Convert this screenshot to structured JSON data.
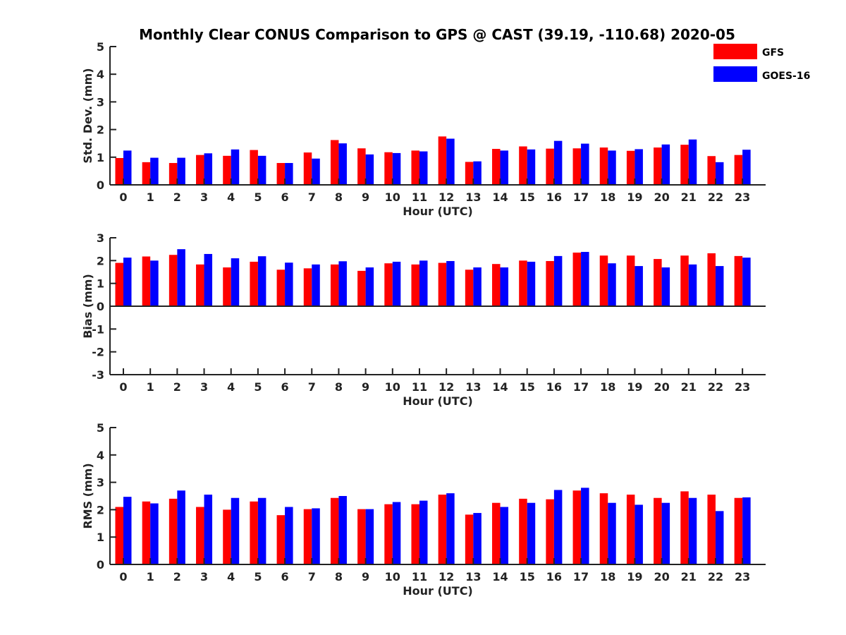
{
  "title": "Monthly Clear CONUS Comparison to GPS @ CAST (39.19, -110.68) 2020-05",
  "colors": {
    "GFS": "#ff0000",
    "GOES-16": "#0000ff",
    "axis": "#222222"
  },
  "legend": [
    {
      "name": "GFS",
      "color": "#ff0000"
    },
    {
      "name": "GOES-16",
      "color": "#0000ff"
    }
  ],
  "chart_data": [
    {
      "type": "bar",
      "ylabel": "Std. Dev. (mm)",
      "xlabel": "Hour (UTC)",
      "ylim": [
        0,
        5
      ],
      "yticks": [
        0,
        1,
        2,
        3,
        4,
        5
      ],
      "categories": [
        "0",
        "1",
        "2",
        "3",
        "4",
        "5",
        "6",
        "7",
        "8",
        "9",
        "10",
        "11",
        "12",
        "13",
        "14",
        "15",
        "16",
        "17",
        "18",
        "19",
        "20",
        "21",
        "22",
        "23"
      ],
      "series": [
        {
          "name": "GFS",
          "values": [
            0.97,
            0.82,
            0.79,
            1.08,
            1.05,
            1.26,
            0.79,
            1.17,
            1.62,
            1.32,
            1.18,
            1.24,
            1.75,
            0.83,
            1.3,
            1.39,
            1.31,
            1.32,
            1.35,
            1.23,
            1.35,
            1.45,
            1.04,
            1.08
          ]
        },
        {
          "name": "GOES-16",
          "values": [
            1.24,
            0.98,
            0.98,
            1.14,
            1.28,
            1.05,
            0.79,
            0.95,
            1.5,
            1.1,
            1.15,
            1.21,
            1.67,
            0.85,
            1.24,
            1.28,
            1.59,
            1.49,
            1.24,
            1.29,
            1.46,
            1.64,
            0.82,
            1.27
          ]
        }
      ]
    },
    {
      "type": "bar",
      "ylabel": "Bias (mm)",
      "xlabel": "Hour (UTC)",
      "ylim": [
        -3,
        3
      ],
      "yticks": [
        -3,
        -2,
        -1,
        0,
        1,
        2,
        3
      ],
      "categories": [
        "0",
        "1",
        "2",
        "3",
        "4",
        "5",
        "6",
        "7",
        "8",
        "9",
        "10",
        "11",
        "12",
        "13",
        "14",
        "15",
        "16",
        "17",
        "18",
        "19",
        "20",
        "21",
        "22",
        "23"
      ],
      "series": [
        {
          "name": "GFS",
          "values": [
            1.9,
            2.18,
            2.25,
            1.83,
            1.7,
            1.95,
            1.6,
            1.66,
            1.83,
            1.55,
            1.88,
            1.83,
            1.9,
            1.6,
            1.85,
            2.0,
            1.98,
            2.35,
            2.22,
            2.22,
            2.07,
            2.22,
            2.32,
            2.2
          ]
        },
        {
          "name": "GOES-16",
          "values": [
            2.13,
            2.0,
            2.5,
            2.29,
            2.1,
            2.19,
            1.91,
            1.83,
            1.97,
            1.7,
            1.95,
            2.0,
            1.98,
            1.7,
            1.7,
            1.95,
            2.2,
            2.38,
            1.88,
            1.76,
            1.7,
            1.83,
            1.76,
            2.13
          ]
        }
      ]
    },
    {
      "type": "bar",
      "ylabel": "RMS (mm)",
      "xlabel": "Hour (UTC)",
      "ylim": [
        0,
        5
      ],
      "yticks": [
        0,
        1,
        2,
        3,
        4,
        5
      ],
      "categories": [
        "0",
        "1",
        "2",
        "3",
        "4",
        "5",
        "6",
        "7",
        "8",
        "9",
        "10",
        "11",
        "12",
        "13",
        "14",
        "15",
        "16",
        "17",
        "18",
        "19",
        "20",
        "21",
        "22",
        "23"
      ],
      "series": [
        {
          "name": "GFS",
          "values": [
            2.1,
            2.3,
            2.4,
            2.1,
            2.0,
            2.3,
            1.8,
            2.02,
            2.43,
            2.02,
            2.2,
            2.2,
            2.55,
            1.82,
            2.25,
            2.4,
            2.38,
            2.7,
            2.6,
            2.55,
            2.43,
            2.67,
            2.55,
            2.43
          ]
        },
        {
          "name": "GOES-16",
          "values": [
            2.47,
            2.23,
            2.7,
            2.55,
            2.43,
            2.43,
            2.1,
            2.05,
            2.5,
            2.02,
            2.28,
            2.33,
            2.6,
            1.88,
            2.1,
            2.25,
            2.72,
            2.8,
            2.25,
            2.18,
            2.25,
            2.43,
            1.95,
            2.45
          ]
        }
      ]
    }
  ]
}
